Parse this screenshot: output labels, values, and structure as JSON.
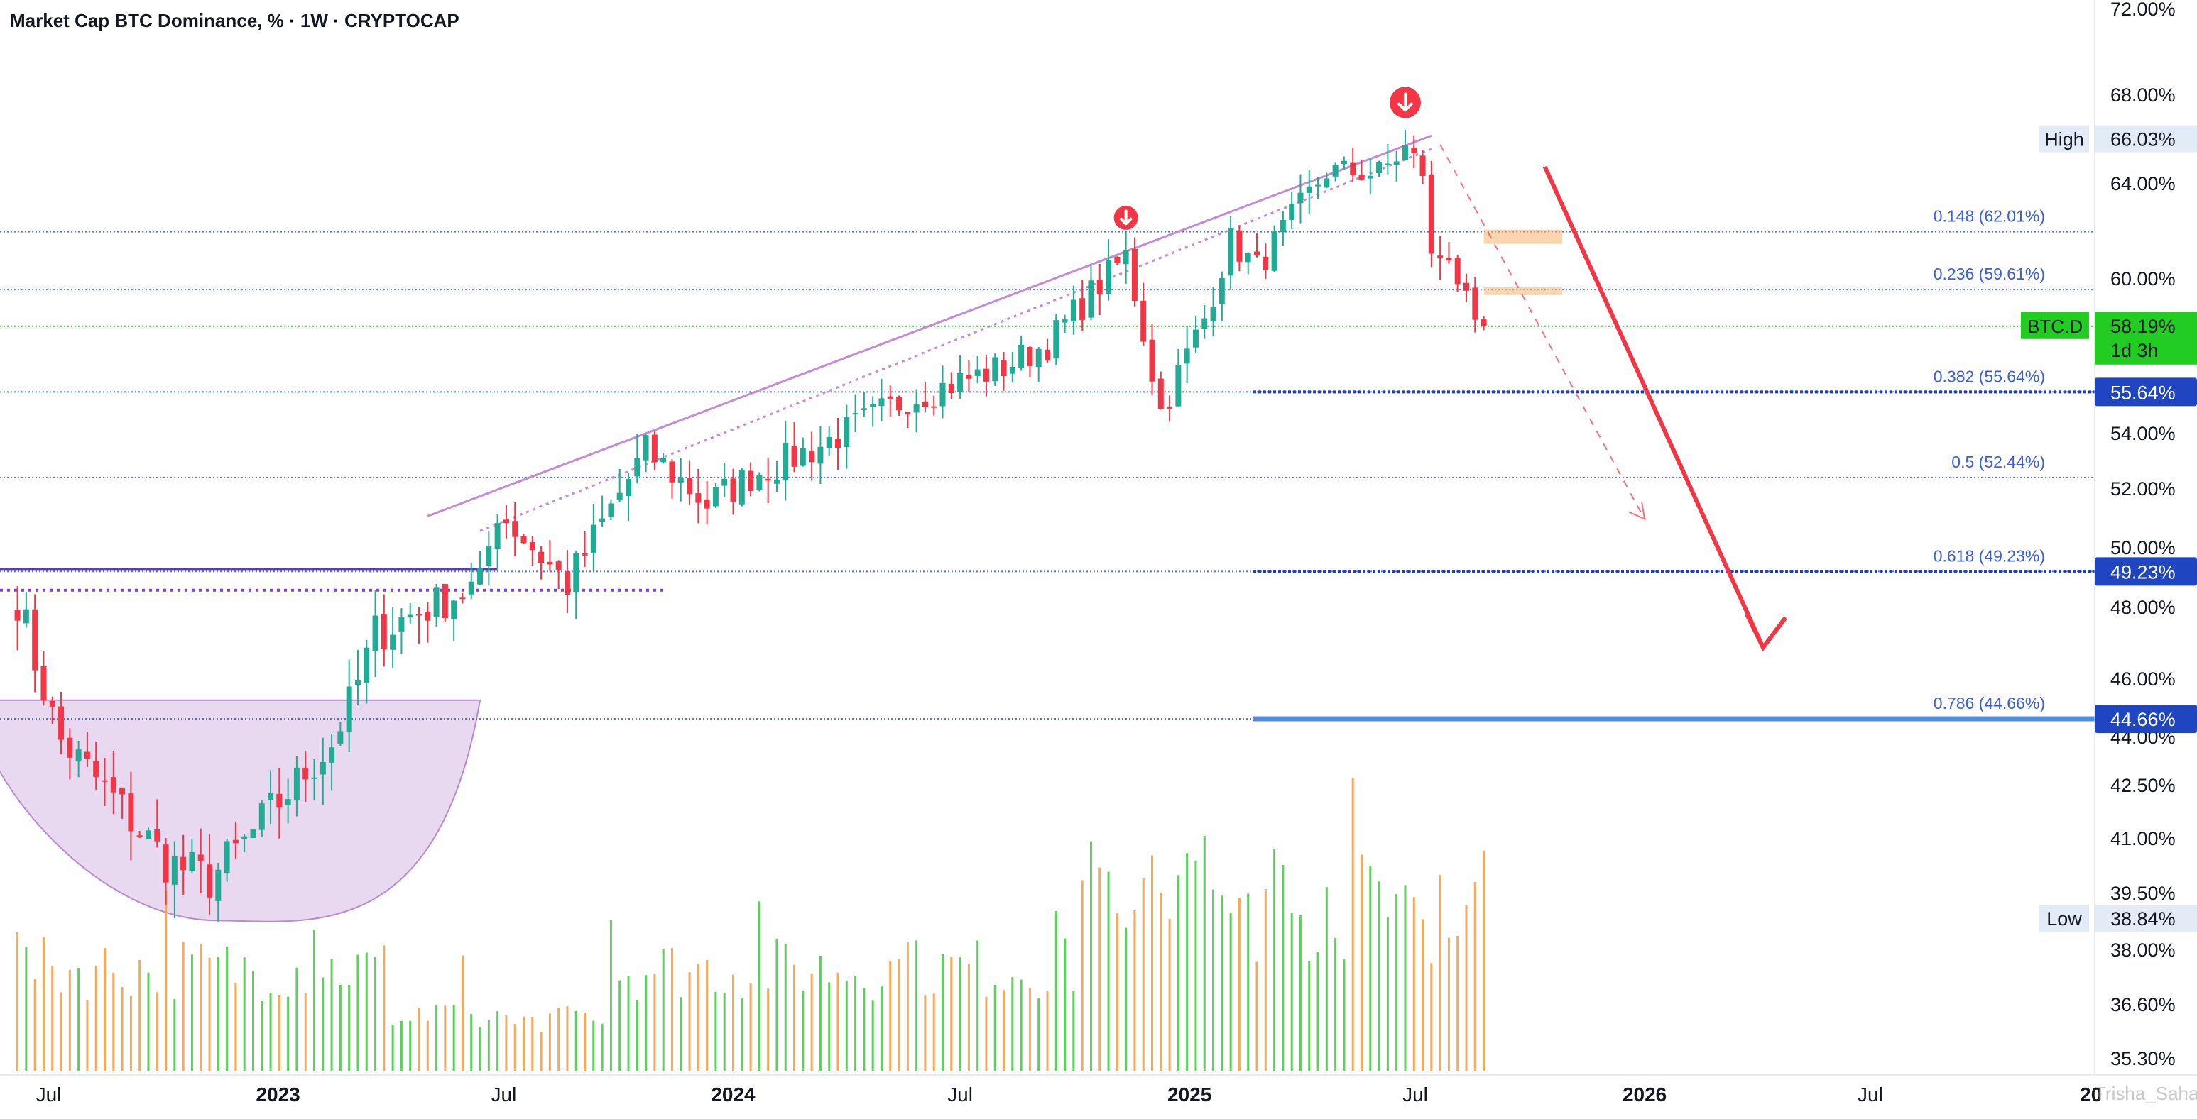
{
  "title": "Market Cap BTC Dominance, % · 1W · CRYPTOCAP",
  "watermark": "Trisha_Saha",
  "colors": {
    "up": "#22ab94",
    "down": "#f23645",
    "fib": "#3a5fd9",
    "channel": "#c58ad6",
    "bowl": "#b98ad0",
    "projection": "#f23645",
    "zone": "#f6b26b",
    "price_label": "#22cc22",
    "fib_label_bg": "#1f45c0",
    "light_blue": "#4f8de3"
  },
  "chart_data": {
    "type": "candlestick",
    "timeframe": "1W",
    "symbol": "BTC.D",
    "ylim": [
      35.3,
      72.0
    ],
    "x_range": [
      "2022-05-23",
      "2026-12-28"
    ],
    "y_axis_ticks": [
      "72.00%",
      "68.00%",
      "64.00%",
      "60.00%",
      "54.00%",
      "52.00%",
      "50.00%",
      "48.00%",
      "46.00%",
      "44.00%",
      "42.50%",
      "41.00%",
      "39.50%",
      "38.00%",
      "36.60%",
      "35.30%"
    ],
    "x_axis_ticks": [
      {
        "date": "2022-07-01",
        "label": "Jul",
        "bold": false
      },
      {
        "date": "2023-01-01",
        "label": "2023",
        "bold": true
      },
      {
        "date": "2023-07-01",
        "label": "Jul",
        "bold": false
      },
      {
        "date": "2024-01-01",
        "label": "2024",
        "bold": true
      },
      {
        "date": "2024-07-01",
        "label": "Jul",
        "bold": false
      },
      {
        "date": "2025-01-01",
        "label": "2025",
        "bold": true
      },
      {
        "date": "2025-07-01",
        "label": "Jul",
        "bold": false
      },
      {
        "date": "2026-01-01",
        "label": "2026",
        "bold": true
      },
      {
        "date": "2026-07-01",
        "label": "Jul",
        "bold": false
      },
      {
        "date": "2026-12-25",
        "label": "20",
        "bold": true
      }
    ],
    "anchors": [
      {
        "date": "2022-06-06",
        "value": 48.3
      },
      {
        "date": "2022-07-11",
        "value": 43.9
      },
      {
        "date": "2022-10-03",
        "value": 40.4
      },
      {
        "date": "2022-11-07",
        "value": 39.9
      },
      {
        "date": "2022-12-05",
        "value": 40.9
      },
      {
        "date": "2023-02-13",
        "value": 43.8
      },
      {
        "date": "2023-03-20",
        "value": 47.3
      },
      {
        "date": "2023-06-12",
        "value": 48.8
      },
      {
        "date": "2023-06-26",
        "value": 51.3
      },
      {
        "date": "2023-08-21",
        "value": 48.8
      },
      {
        "date": "2023-10-23",
        "value": 53.4
      },
      {
        "date": "2023-12-11",
        "value": 51.5
      },
      {
        "date": "2024-01-15",
        "value": 52.5
      },
      {
        "date": "2024-03-11",
        "value": 53.6
      },
      {
        "date": "2024-05-20",
        "value": 55.4
      },
      {
        "date": "2024-08-05",
        "value": 56.6
      },
      {
        "date": "2024-09-09",
        "value": 57.5
      },
      {
        "date": "2024-11-11",
        "value": 61.0
      },
      {
        "date": "2024-12-09",
        "value": 54.9
      },
      {
        "date": "2025-01-13",
        "value": 58.5
      },
      {
        "date": "2025-02-03",
        "value": 61.6
      },
      {
        "date": "2025-02-24",
        "value": 60.5
      },
      {
        "date": "2025-04-21",
        "value": 64.6
      },
      {
        "date": "2025-06-02",
        "value": 64.5
      },
      {
        "date": "2025-06-23",
        "value": 65.6
      },
      {
        "date": "2025-07-07",
        "value": 64.6
      },
      {
        "date": "2025-07-14",
        "value": 60.8
      },
      {
        "date": "2025-07-28",
        "value": 61.2
      },
      {
        "date": "2025-08-18",
        "value": 57.8
      },
      {
        "date": "2025-08-25",
        "value": 58.19
      }
    ],
    "fib_levels": [
      {
        "ratio": "0.148",
        "value": 62.01,
        "label": "0.148 (62.01%)",
        "axis_label": ""
      },
      {
        "ratio": "0.236",
        "value": 59.61,
        "label": "0.236 (59.61%)",
        "axis_label": ""
      },
      {
        "ratio": "0.382",
        "value": 55.64,
        "label": "0.382 (55.64%)",
        "axis_label": "55.64%"
      },
      {
        "ratio": "0.5",
        "value": 52.44,
        "label": "0.5 (52.44%)",
        "axis_label": ""
      },
      {
        "ratio": "0.618",
        "value": 49.23,
        "label": "0.618 (49.23%)",
        "axis_label": "49.23%"
      },
      {
        "ratio": "0.786",
        "value": 44.66,
        "label": "0.786 (44.66%)",
        "axis_label": "44.66%"
      }
    ],
    "high": {
      "label": "High",
      "value": 66.03,
      "text": "66.03%"
    },
    "low": {
      "label": "Low",
      "value": 38.84,
      "text": "38.84%"
    },
    "current": {
      "symbol": "BTC.D",
      "value": 58.19,
      "text": "58.19%",
      "countdown": "1d 3h"
    },
    "channel_line": {
      "start": {
        "date": "2023-05-01",
        "value": 51.1
      },
      "end": {
        "date": "2025-07-14",
        "value": 66.2
      }
    },
    "channel_dotted": {
      "start": {
        "date": "2023-06-12",
        "value": 50.6
      },
      "end": {
        "date": "2025-07-14",
        "value": 65.6
      }
    },
    "support_line": {
      "start": {
        "date": "2022-05-23",
        "value": 49.3
      },
      "end": {
        "date": "2023-06-26",
        "value": 49.3
      }
    },
    "support_dotted": {
      "start": {
        "date": "2022-05-23",
        "value": 48.6
      },
      "end": {
        "date": "2023-11-06",
        "value": 48.6
      }
    },
    "bowl": {
      "start": {
        "date": "2022-05-23",
        "value": 45.3
      },
      "bottom": {
        "date": "2022-11-14",
        "value": 38.8
      },
      "end": {
        "date": "2023-06-12",
        "value": 45.3
      }
    },
    "projection_arrow": {
      "start": {
        "date": "2025-10-13",
        "value": 64.8
      },
      "end": {
        "date": "2026-04-06",
        "value": 46.9
      }
    },
    "dashed_projection": {
      "start": {
        "date": "2025-07-21",
        "value": 65.8
      },
      "end": {
        "date": "2026-01-01",
        "value": 51.0
      }
    },
    "resistance_zones": [
      {
        "start": "2025-08-25",
        "end": "2025-10-27",
        "low": 61.5,
        "high": 62.1
      },
      {
        "start": "2025-08-25",
        "end": "2025-10-27",
        "low": 59.4,
        "high": 59.7
      }
    ],
    "down_markers": [
      {
        "date": "2024-11-11",
        "value": 62.6
      },
      {
        "date": "2025-06-23",
        "value": 67.7
      }
    ]
  }
}
